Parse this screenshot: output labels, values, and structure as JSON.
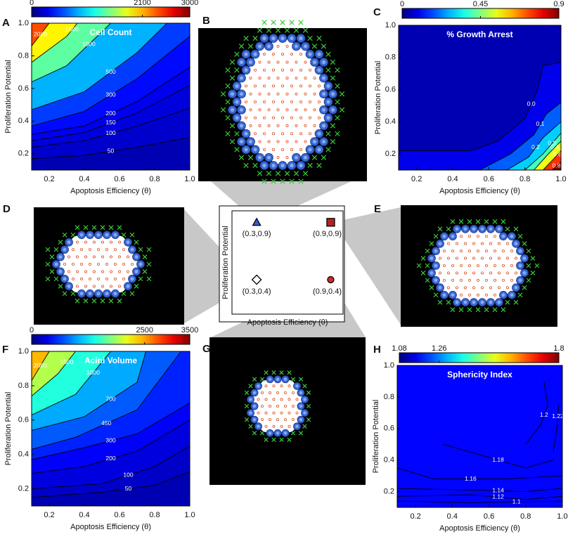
{
  "chart_data": [
    {
      "type": "contour",
      "label": "A",
      "title": "Cell Count",
      "xlabel": "Apoptosis Efficiency (θ)",
      "ylabel": "Proliferation Potential",
      "xlim": [
        0.1,
        1.0
      ],
      "ylim": [
        0.1,
        1.0
      ],
      "xticks": [
        0.2,
        0.4,
        0.6,
        0.8,
        {
          "value": 1,
          "label": "1.0"
        }
      ],
      "yticks": [
        0.2,
        0.4,
        0.6,
        0.8,
        {
          "value": 1,
          "label": "1.0"
        }
      ],
      "colorbar_lim": [
        0,
        3000
      ],
      "colorbar_ticks": [
        0,
        2100,
        3000
      ],
      "fill_to": "top-left",
      "levels": [
        {
          "value": 50,
          "x": [
            0.1,
            0.4,
            0.7,
            1.0
          ],
          "y": [
            0.17,
            0.19,
            0.24,
            0.3
          ]
        },
        {
          "value": 100,
          "x": [
            0.1,
            0.4,
            0.7,
            1.0
          ],
          "y": [
            0.24,
            0.28,
            0.37,
            0.48
          ]
        },
        {
          "value": 150,
          "x": [
            0.1,
            0.4,
            0.7,
            1.0
          ],
          "y": [
            0.28,
            0.33,
            0.45,
            0.62
          ]
        },
        {
          "value": 200,
          "x": [
            0.1,
            0.4,
            0.7,
            1.0
          ],
          "y": [
            0.32,
            0.37,
            0.52,
            0.73
          ]
        },
        {
          "value": 300,
          "x": [
            0.1,
            0.4,
            0.7,
            1.0
          ],
          "y": [
            0.37,
            0.46,
            0.66,
            0.92
          ]
        },
        {
          "value": 500,
          "x": [
            0.1,
            0.4,
            0.7,
            0.87
          ],
          "y": [
            0.47,
            0.58,
            0.82,
            1.0
          ]
        },
        {
          "value": 1000,
          "x": [
            0.1,
            0.3,
            0.55
          ],
          "y": [
            0.64,
            0.74,
            1.0
          ]
        },
        {
          "value": 1500,
          "x": [
            0.1,
            0.3,
            0.36
          ],
          "y": [
            0.76,
            0.92,
            1.0
          ]
        },
        {
          "value": 2000,
          "x": [
            0.1,
            0.2
          ],
          "y": [
            0.86,
            1.0
          ]
        }
      ]
    },
    {
      "type": "image",
      "label": "B"
    },
    {
      "type": "contour",
      "label": "C",
      "title": "% Growth Arrest",
      "xlabel": "Apoptosis Efficiency (θ)",
      "ylabel": "Proliferation Potential",
      "xlim": [
        0.1,
        1.0
      ],
      "ylim": [
        0.1,
        1.0
      ],
      "xticks": [
        0.2,
        0.4,
        0.6,
        0.8,
        {
          "value": 1,
          "label": "1.0"
        }
      ],
      "yticks": [
        0.2,
        0.4,
        0.6,
        0.8,
        {
          "value": 1,
          "label": "1.0"
        }
      ],
      "colorbar_lim": [
        0,
        0.9
      ],
      "colorbar_ticks": [
        0,
        0.45,
        0.9
      ],
      "fill_to": "bottom-right",
      "levels": [
        {
          "value": 0,
          "label": "0.0",
          "x": [
            0.1,
            0.5,
            0.65,
            0.8,
            0.87,
            0.9,
            1.0
          ],
          "y": [
            0.22,
            0.22,
            0.28,
            0.42,
            0.6,
            0.75,
            0.77
          ]
        },
        {
          "value": 0.1,
          "x": [
            0.55,
            0.72,
            0.85,
            0.92,
            1.0
          ],
          "y": [
            0.1,
            0.2,
            0.32,
            0.45,
            0.52
          ]
        },
        {
          "value": 0.2,
          "x": [
            0.7,
            0.82,
            0.9,
            1.0
          ],
          "y": [
            0.1,
            0.18,
            0.3,
            0.4
          ]
        },
        {
          "value": 0.3,
          "x": [
            0.8,
            0.9,
            1.0
          ],
          "y": [
            0.1,
            0.2,
            0.33
          ]
        },
        {
          "value": 0.4,
          "x": [
            0.85,
            0.93,
            1.0
          ],
          "y": [
            0.1,
            0.2,
            0.28
          ]
        },
        {
          "value": 0.6,
          "x": [
            0.9,
            0.96,
            1.0
          ],
          "y": [
            0.1,
            0.17,
            0.22
          ]
        },
        {
          "value": 0.8,
          "x": [
            0.95,
            1.0
          ],
          "y": [
            0.1,
            0.15
          ]
        }
      ]
    },
    {
      "type": "image",
      "label": "D"
    },
    {
      "type": "scatter",
      "xlabel": "Apoptosis Efficiency (θ)",
      "ylabel": "Proliferation Potential",
      "xlim": [
        0.1,
        1.0
      ],
      "ylim": [
        0.1,
        1.0
      ],
      "x": [
        0.3,
        0.9,
        0.3,
        0.9
      ],
      "values": [
        0.9,
        0.9,
        0.4,
        0.4
      ],
      "point_labels": [
        "(0.3,0.9)",
        "(0.9,0.9)",
        "(0.3,0.4)",
        "(0.9,0.4)"
      ],
      "markers": [
        "triangle",
        "square",
        "diamond",
        "circle"
      ],
      "colors": [
        "#3a5cc8",
        "#b42222",
        "#ffffff",
        "#d42a2a"
      ]
    },
    {
      "type": "image",
      "label": "E"
    },
    {
      "type": "contour",
      "label": "F",
      "title": "Acini Volume",
      "xlabel": "Apoptosis Efficiency (θ)",
      "ylabel": "Proliferation Potential",
      "xlim": [
        0.1,
        1.0
      ],
      "ylim": [
        0.1,
        1.0
      ],
      "xticks": [
        0.2,
        0.4,
        0.6,
        0.8,
        {
          "value": 1,
          "label": "1.0"
        }
      ],
      "yticks": [
        0.2,
        0.4,
        0.6,
        0.8,
        {
          "value": 1,
          "label": "1.0"
        }
      ],
      "colorbar_lim": [
        0,
        3500
      ],
      "colorbar_ticks": [
        0,
        2500,
        3500
      ],
      "fill_to": "top-left",
      "levels": [
        {
          "value": 50,
          "x": [
            0.1,
            0.5,
            0.8,
            1.0
          ],
          "y": [
            0.15,
            0.18,
            0.22,
            0.3
          ]
        },
        {
          "value": 100,
          "x": [
            0.1,
            0.5,
            0.8,
            1.0
          ],
          "y": [
            0.2,
            0.23,
            0.33,
            0.45
          ]
        },
        {
          "value": 200,
          "x": [
            0.1,
            0.4,
            0.7,
            1.0
          ],
          "y": [
            0.29,
            0.33,
            0.42,
            0.6
          ]
        },
        {
          "value": 300,
          "x": [
            0.1,
            0.4,
            0.7,
            1.0
          ],
          "y": [
            0.37,
            0.44,
            0.52,
            0.7
          ]
        },
        {
          "value": 450,
          "x": [
            0.1,
            0.35,
            0.7,
            0.95
          ],
          "y": [
            0.43,
            0.5,
            0.66,
            1.0
          ]
        },
        {
          "value": 700,
          "x": [
            0.1,
            0.4,
            0.7,
            0.75
          ],
          "y": [
            0.54,
            0.62,
            0.82,
            1.0
          ]
        },
        {
          "value": 1000,
          "x": [
            0.1,
            0.35,
            0.55
          ],
          "y": [
            0.63,
            0.75,
            1.0
          ]
        },
        {
          "value": 1500,
          "x": [
            0.1,
            0.25,
            0.35
          ],
          "y": [
            0.74,
            0.87,
            1.0
          ]
        },
        {
          "value": 2000,
          "x": [
            0.1,
            0.2
          ],
          "y": [
            0.83,
            1.0
          ]
        }
      ]
    },
    {
      "type": "image",
      "label": "G"
    },
    {
      "type": "contour",
      "label": "H",
      "title": "Sphericity Index",
      "xlabel": "Apoptosis Efficiency (θ)",
      "ylabel": "Proliferation Potential",
      "xlim": [
        0.1,
        1.0
      ],
      "ylim": [
        0.1,
        1.0
      ],
      "xticks": [
        0.2,
        0.4,
        0.6,
        0.8,
        {
          "value": 1,
          "label": "1.0"
        }
      ],
      "yticks": [
        0.2,
        0.4,
        0.6,
        0.8,
        {
          "value": 1,
          "label": "1.0"
        }
      ],
      "colorbar_lim": [
        1.08,
        1.8
      ],
      "colorbar_ticks": [
        1.08,
        1.26,
        1.8
      ],
      "fill_to": "none",
      "levels": [
        {
          "value": 1.1,
          "x": [
            0.1,
            0.5,
            1.0
          ],
          "y": [
            0.14,
            0.13,
            0.14
          ]
        },
        {
          "value": 1.12,
          "x": [
            0.1,
            0.5,
            0.8,
            1.0
          ],
          "y": [
            0.17,
            0.18,
            0.15,
            0.17
          ]
        },
        {
          "value": 1.14,
          "x": [
            0.1,
            0.5,
            0.8,
            1.0
          ],
          "y": [
            0.22,
            0.21,
            0.2,
            0.22
          ]
        },
        {
          "value": 1.16,
          "x": [
            0.1,
            0.3,
            0.7,
            1.0
          ],
          "y": [
            0.35,
            0.28,
            0.28,
            0.3
          ]
        },
        {
          "value": 1.18,
          "x": [
            0.35,
            0.5,
            0.8,
            0.95
          ],
          "y": [
            0.5,
            0.45,
            0.35,
            0.4
          ]
        },
        {
          "value": 1.2,
          "x": [
            0.8,
            0.88,
            0.92,
            0.9
          ],
          "y": [
            0.5,
            0.62,
            0.75,
            0.9
          ]
        },
        {
          "value": 1.22,
          "x": [
            0.95,
            0.97,
            0.98
          ],
          "y": [
            0.45,
            0.6,
            0.75
          ]
        }
      ]
    }
  ]
}
